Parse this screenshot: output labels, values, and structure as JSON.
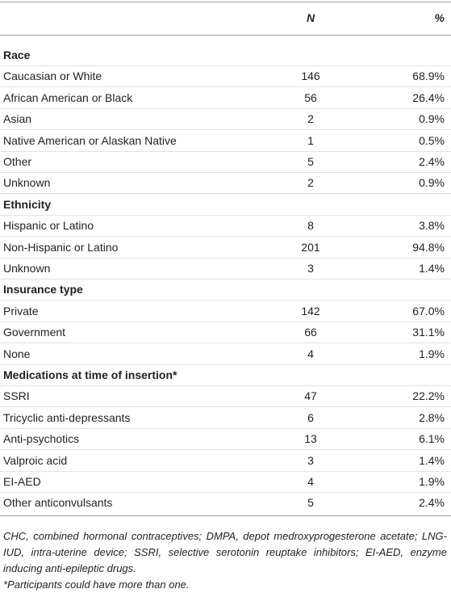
{
  "table": {
    "header": {
      "n": "N",
      "pct": "%"
    },
    "sections": [
      {
        "title": "Race",
        "rows": [
          [
            "Caucasian or White",
            146,
            "68.9%"
          ],
          [
            "African American or Black",
            56,
            "26.4%"
          ],
          [
            "Asian",
            2,
            "0.9%"
          ],
          [
            "Native American or Alaskan Native",
            1,
            "0.5%"
          ],
          [
            "Other",
            5,
            "2.4%"
          ],
          [
            "Unknown",
            2,
            "0.9%"
          ]
        ]
      },
      {
        "title": "Ethnicity",
        "rows": [
          [
            "Hispanic or Latino",
            8,
            "3.8%"
          ],
          [
            "Non-Hispanic or Latino",
            201,
            "94.8%"
          ],
          [
            "Unknown",
            3,
            "1.4%"
          ]
        ]
      },
      {
        "title": "Insurance type",
        "rows": [
          [
            "Private",
            142,
            "67.0%"
          ],
          [
            "Government",
            66,
            "31.1%"
          ],
          [
            "None",
            4,
            "1.9%"
          ]
        ]
      },
      {
        "title": "Medications at time of insertion*",
        "rows": [
          [
            "SSRI",
            47,
            "22.2%"
          ],
          [
            "Tricyclic anti-depressants",
            6,
            "2.8%"
          ],
          [
            "Anti-psychotics",
            13,
            "6.1%"
          ],
          [
            "Valproic acid",
            3,
            "1.4%"
          ],
          [
            "EI-AED",
            4,
            "1.9%"
          ],
          [
            "Other anticonvulsants",
            5,
            "2.4%"
          ]
        ]
      }
    ]
  },
  "notes": [
    "CHC, combined hormonal contraceptives; DMPA, depot medroxyprogesterone acetate; LNG-IUD, intra-uterine device; SSRI, selective serotonin reuptake inhibitors; EI-AED, enzyme inducing anti-epileptic drugs.",
    "*Participants could have more than one."
  ]
}
